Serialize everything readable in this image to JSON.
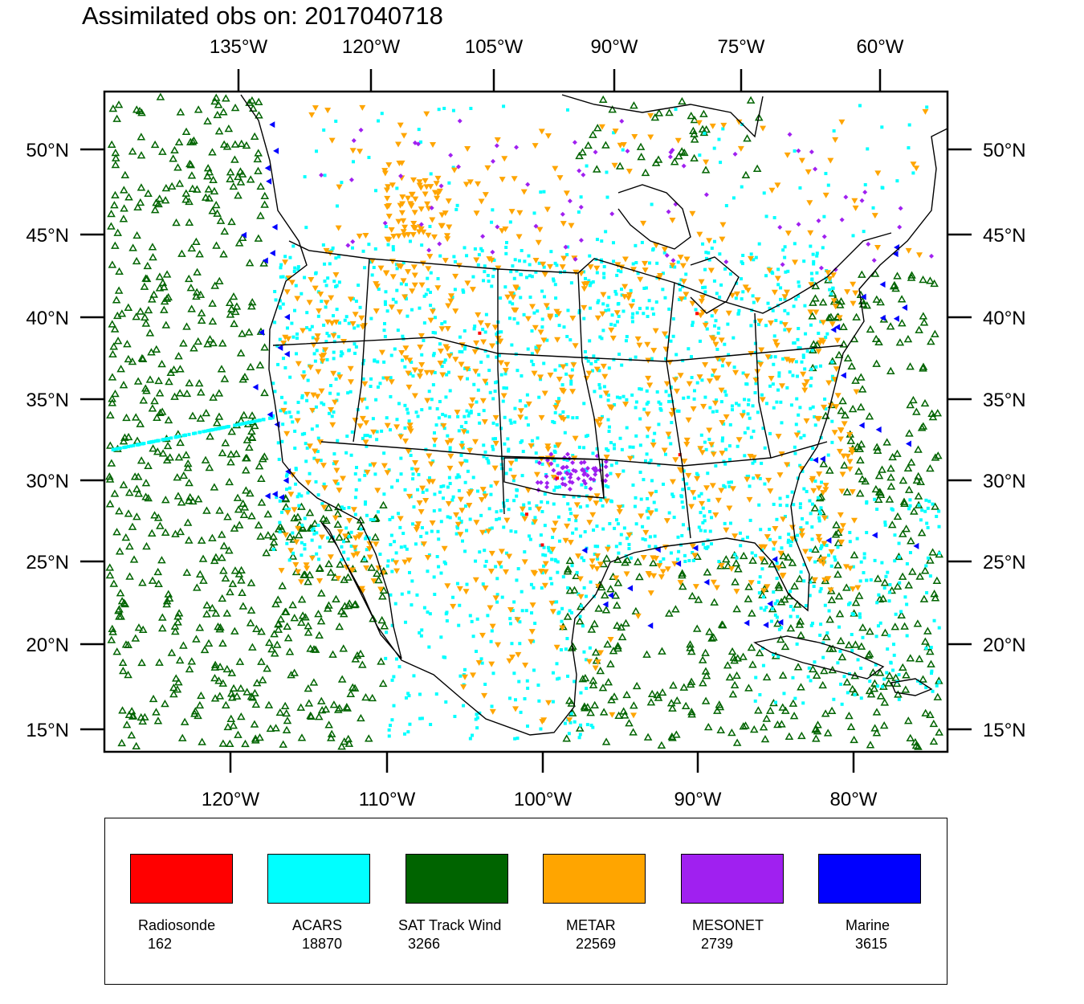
{
  "title": "Assimilated obs on: 2017040718",
  "top_axis_labels": [
    "135°W",
    "120°W",
    "105°W",
    "90°W",
    "75°W",
    "60°W"
  ],
  "bottom_axis_labels": [
    "120°W",
    "110°W",
    "100°W",
    "90°W",
    "80°W"
  ],
  "left_axis_labels": [
    "50°N",
    "45°N",
    "40°N",
    "35°N",
    "30°N",
    "25°N",
    "20°N",
    "15°N"
  ],
  "right_axis_labels": [
    "50°N",
    "45°N",
    "40°N",
    "35°N",
    "30°N",
    "25°N",
    "20°N",
    "15°N"
  ],
  "legend": [
    {
      "label": "Radiosonde",
      "count": "162",
      "color": "#ff0000"
    },
    {
      "label": "ACARS",
      "count": "18870",
      "color": "#00ffff"
    },
    {
      "label": "SAT Track Wind",
      "count": "3266",
      "color": "#006400"
    },
    {
      "label": "METAR",
      "count": "22569",
      "color": "#ffa500"
    },
    {
      "label": "MESONET",
      "count": "2739",
      "color": "#a020f0"
    },
    {
      "label": "Marine",
      "count": "3615",
      "color": "#0000ff"
    }
  ]
}
